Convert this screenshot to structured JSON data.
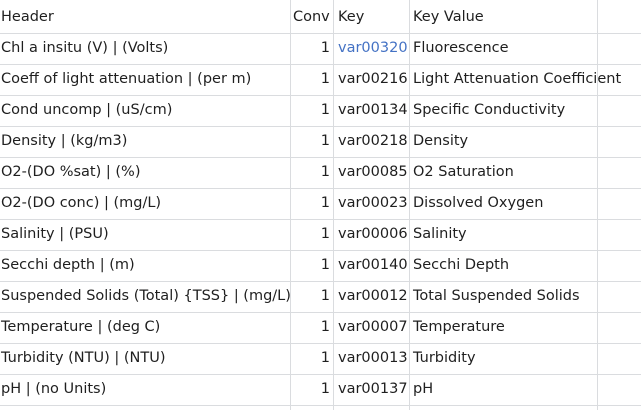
{
  "headers": {
    "header": "Header",
    "conv": "Conv",
    "key": "Key",
    "key_value": "Key Value"
  },
  "colors": {
    "text": "#1f1f1f",
    "hyperlink": "#4472c4",
    "gridline": "#dadcdf",
    "background": "#ffffff"
  },
  "rows": [
    {
      "header": "Chl a insitu (V) | (Volts)",
      "conv": "1",
      "key": "var00320",
      "key_value": "Fluorescence",
      "key_is_link": true
    },
    {
      "header": "Coeff of light attenuation | (per m)",
      "conv": "1",
      "key": "var00216",
      "key_value": "Light Attenuation Coefficient"
    },
    {
      "header": "Cond uncomp | (uS/cm)",
      "conv": "1",
      "key": "var00134",
      "key_value": "Specific Conductivity"
    },
    {
      "header": "Density | (kg/m3)",
      "conv": "1",
      "key": "var00218",
      "key_value": "Density"
    },
    {
      "header": "O2-(DO %sat) | (%)",
      "conv": "1",
      "key": "var00085",
      "key_value": "O2 Saturation"
    },
    {
      "header": "O2-(DO conc) | (mg/L)",
      "conv": "1",
      "key": "var00023",
      "key_value": "Dissolved Oxygen"
    },
    {
      "header": "Salinity | (PSU)",
      "conv": "1",
      "key": "var00006",
      "key_value": "Salinity"
    },
    {
      "header": "Secchi depth | (m)",
      "conv": "1",
      "key": "var00140",
      "key_value": "Secchi Depth"
    },
    {
      "header": "Suspended Solids (Total) {TSS} | (mg/L)",
      "conv": "1",
      "key": "var00012",
      "key_value": "Total Suspended Solids"
    },
    {
      "header": "Temperature | (deg C)",
      "conv": "1",
      "key": "var00007",
      "key_value": "Temperature"
    },
    {
      "header": "Turbidity (NTU) | (NTU)",
      "conv": "1",
      "key": "var00013",
      "key_value": "Turbidity"
    },
    {
      "header": "pH | (no Units)",
      "conv": "1",
      "key": "var00137",
      "key_value": "pH"
    }
  ]
}
